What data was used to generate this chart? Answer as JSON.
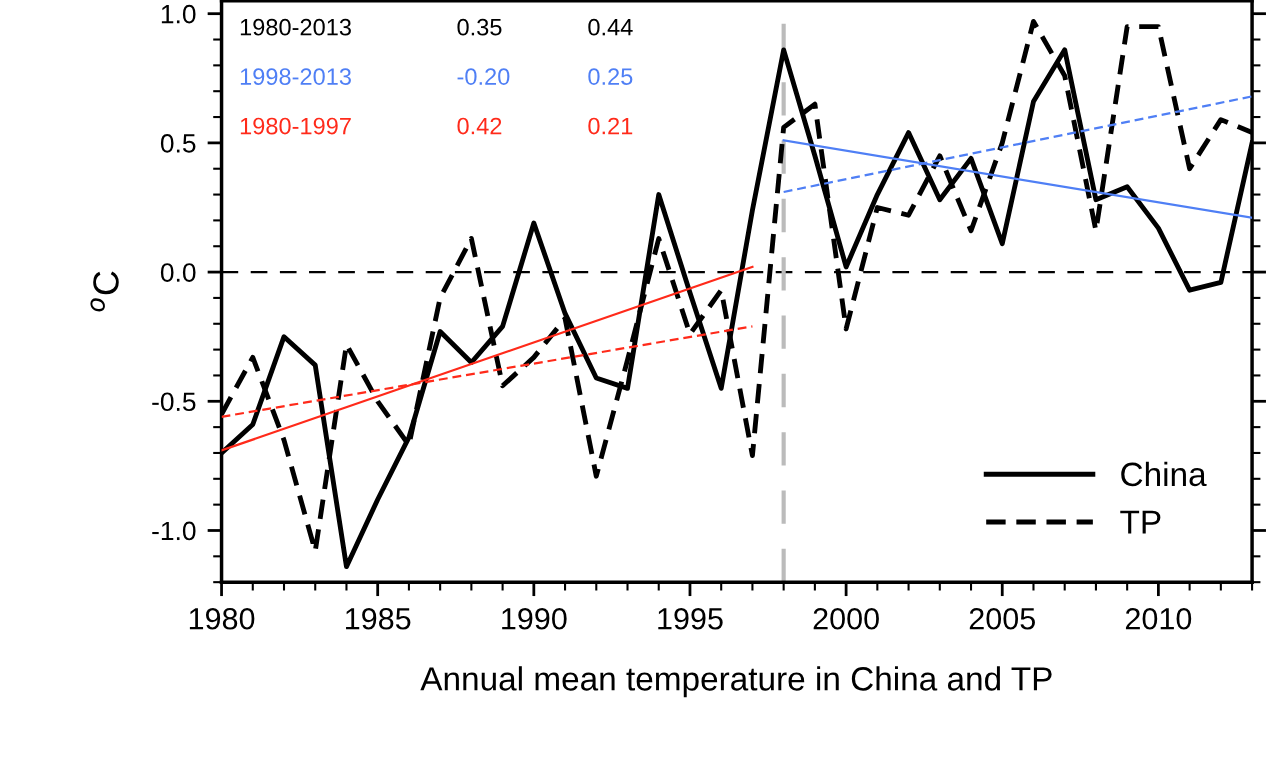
{
  "chart_data": {
    "type": "line",
    "xlabel": "Annual mean temperature in China and TP",
    "ylabel": "$^{o}$C",
    "x": [
      1980,
      1981,
      1982,
      1983,
      1984,
      1985,
      1986,
      1987,
      1988,
      1989,
      1990,
      1991,
      1992,
      1993,
      1994,
      1995,
      1996,
      1997,
      1998,
      1999,
      2000,
      2001,
      2002,
      2003,
      2004,
      2005,
      2006,
      2007,
      2008,
      2009,
      2010,
      2011,
      2012,
      2013
    ],
    "series": [
      {
        "name": "China",
        "color": "#000000",
        "line_style": "solid",
        "values": [
          -0.7,
          -0.59,
          -0.25,
          -0.36,
          -1.14,
          -0.88,
          -0.64,
          -0.23,
          -0.35,
          -0.21,
          0.19,
          -0.16,
          -0.41,
          -0.45,
          0.3,
          -0.08,
          -0.45,
          0.24,
          0.86,
          0.45,
          0.02,
          0.3,
          0.54,
          0.28,
          0.44,
          0.11,
          0.66,
          0.86,
          0.28,
          0.33,
          0.17,
          -0.07,
          -0.04,
          0.5
        ]
      },
      {
        "name": "TP",
        "color": "#000000",
        "line_style": "dashed",
        "values": [
          -0.55,
          -0.33,
          -0.65,
          -1.08,
          -0.28,
          -0.5,
          -0.67,
          -0.1,
          0.13,
          -0.44,
          -0.33,
          -0.18,
          -0.79,
          -0.34,
          0.13,
          -0.24,
          -0.07,
          -0.71,
          0.56,
          0.65,
          -0.22,
          0.25,
          0.22,
          0.45,
          0.16,
          0.5,
          0.97,
          0.76,
          0.16,
          0.95,
          0.95,
          0.4,
          0.59,
          0.54
        ]
      },
      {
        "color": "#ff2a1a",
        "line_style": "solid",
        "x": [
          1980,
          1997
        ],
        "values": [
          -0.69,
          0.02
        ]
      },
      {
        "color": "#ff2a1a",
        "line_style": "dashed",
        "x": [
          1980,
          1997
        ],
        "values": [
          -0.56,
          -0.21
        ]
      },
      {
        "color": "#4f7ff5",
        "line_style": "solid",
        "x": [
          1998,
          2013
        ],
        "values": [
          0.51,
          0.21
        ]
      },
      {
        "color": "#4f7ff5",
        "line_style": "dashed",
        "x": [
          1998,
          2013
        ],
        "values": [
          0.31,
          0.68
        ]
      }
    ],
    "annotations": [
      "1980-2013",
      "0.35",
      "0.44",
      "1998-2013",
      "-0.20",
      "0.25",
      "1980-1997",
      "0.42",
      "0.21"
    ],
    "ref_lines": [
      {
        "axis": "y",
        "value": 0,
        "color": "#000000",
        "line_style": "dashed"
      },
      {
        "axis": "x",
        "value": 1998,
        "color": "#bbbbbb",
        "line_style": "dashed"
      }
    ],
    "xlim": [
      1980,
      2013
    ],
    "ylim": [
      -1.2,
      1.05
    ],
    "xticks": [
      1980,
      1985,
      1990,
      1995,
      2000,
      2005,
      2010
    ],
    "yticks": [
      {
        "value": -1.0,
        "label": "-1.0"
      },
      {
        "value": -0.5,
        "label": "-0.5"
      },
      {
        "value": 0.0,
        "label": "0.0"
      },
      {
        "value": 0.5,
        "label": "0.5"
      },
      {
        "value": 1.0,
        "label": "1.0"
      }
    ],
    "legend": "bottom right"
  }
}
